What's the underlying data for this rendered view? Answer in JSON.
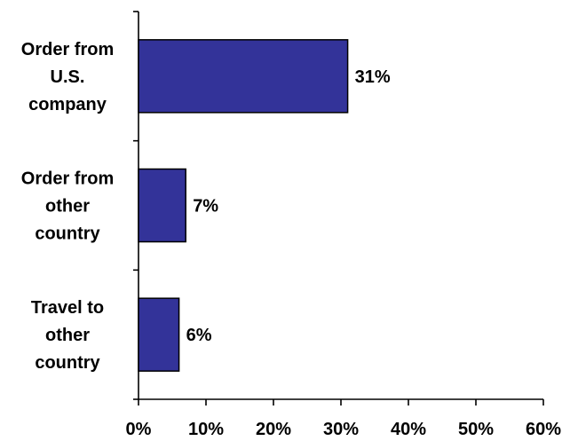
{
  "chart_data": {
    "type": "bar",
    "orientation": "horizontal",
    "categories": [
      [
        "Order from",
        "U.S.",
        "company"
      ],
      [
        "Order from",
        "other",
        "country"
      ],
      [
        "Travel to",
        "other",
        "country"
      ]
    ],
    "values": [
      31,
      7,
      6
    ],
    "data_labels": [
      "31%",
      "7%",
      "6%"
    ],
    "xlim": [
      0,
      60
    ],
    "x_ticks": [
      0,
      10,
      20,
      30,
      40,
      50,
      60
    ],
    "x_tick_labels": [
      "0%",
      "10%",
      "20%",
      "30%",
      "40%",
      "50%",
      "60%"
    ],
    "bar_color": "#333399",
    "grid": false,
    "legend": false
  }
}
